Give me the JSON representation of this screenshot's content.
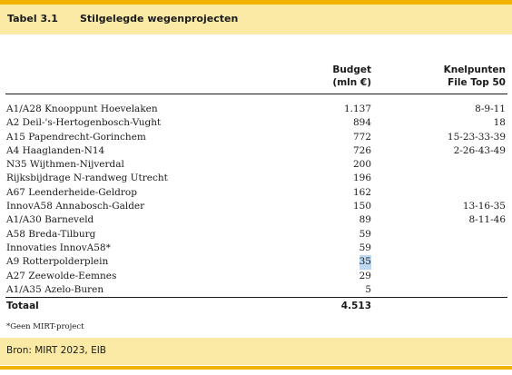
{
  "table": {
    "number": "Tabel 3.1",
    "title": "Stilgelegde wegenprojecten",
    "col_budget_line1": "Budget",
    "col_budget_line2": "(mln €)",
    "col_knel_line1": "Knelpunten",
    "col_knel_line2": "File Top 50",
    "rows": [
      {
        "name": "A1/A28 Knooppunt Hoevelaken",
        "budget": "1.137",
        "knel": "8-9-11"
      },
      {
        "name": "A2 Deil-'s-Hertogenbosch-Vught",
        "budget": "894",
        "knel": "18"
      },
      {
        "name": "A15 Papendrecht-Gorinchem",
        "budget": "772",
        "knel": "15-23-33-39"
      },
      {
        "name": "A4 Haaglanden-N14",
        "budget": "726",
        "knel": "2-26-43-49"
      },
      {
        "name": "N35 Wijthmen-Nijverdal",
        "budget": "200",
        "knel": ""
      },
      {
        "name": "Rijksbijdrage N-randweg Utrecht",
        "budget": "196",
        "knel": ""
      },
      {
        "name": "A67 Leenderheide-Geldrop",
        "budget": "162",
        "knel": ""
      },
      {
        "name": "InnovA58 Annabosch-Galder",
        "budget": "150",
        "knel": "13-16-35"
      },
      {
        "name": "A1/A30 Barneveld",
        "budget": "89",
        "knel": "8-11-46"
      },
      {
        "name": "A58 Breda-Tilburg",
        "budget": "59",
        "knel": ""
      },
      {
        "name": "Innovaties InnovA58*",
        "budget": "59",
        "knel": ""
      },
      {
        "name": "A9 Rotterpolderplein",
        "budget": "35",
        "knel": ""
      },
      {
        "name": "A27 Zeewolde-Eemnes",
        "budget": "29",
        "knel": ""
      },
      {
        "name": "A1/A35 Azelo-Buren",
        "budget": "5",
        "knel": ""
      }
    ],
    "total_label": "Totaal",
    "total_budget": "4.513",
    "footnote": "*Geen MIRT-project",
    "source": "Bron: MIRT 2023, EIB"
  },
  "colors": {
    "accent": "#f0b400",
    "header_bg": "#fbeaa6",
    "highlight": "#bcd8f2"
  }
}
